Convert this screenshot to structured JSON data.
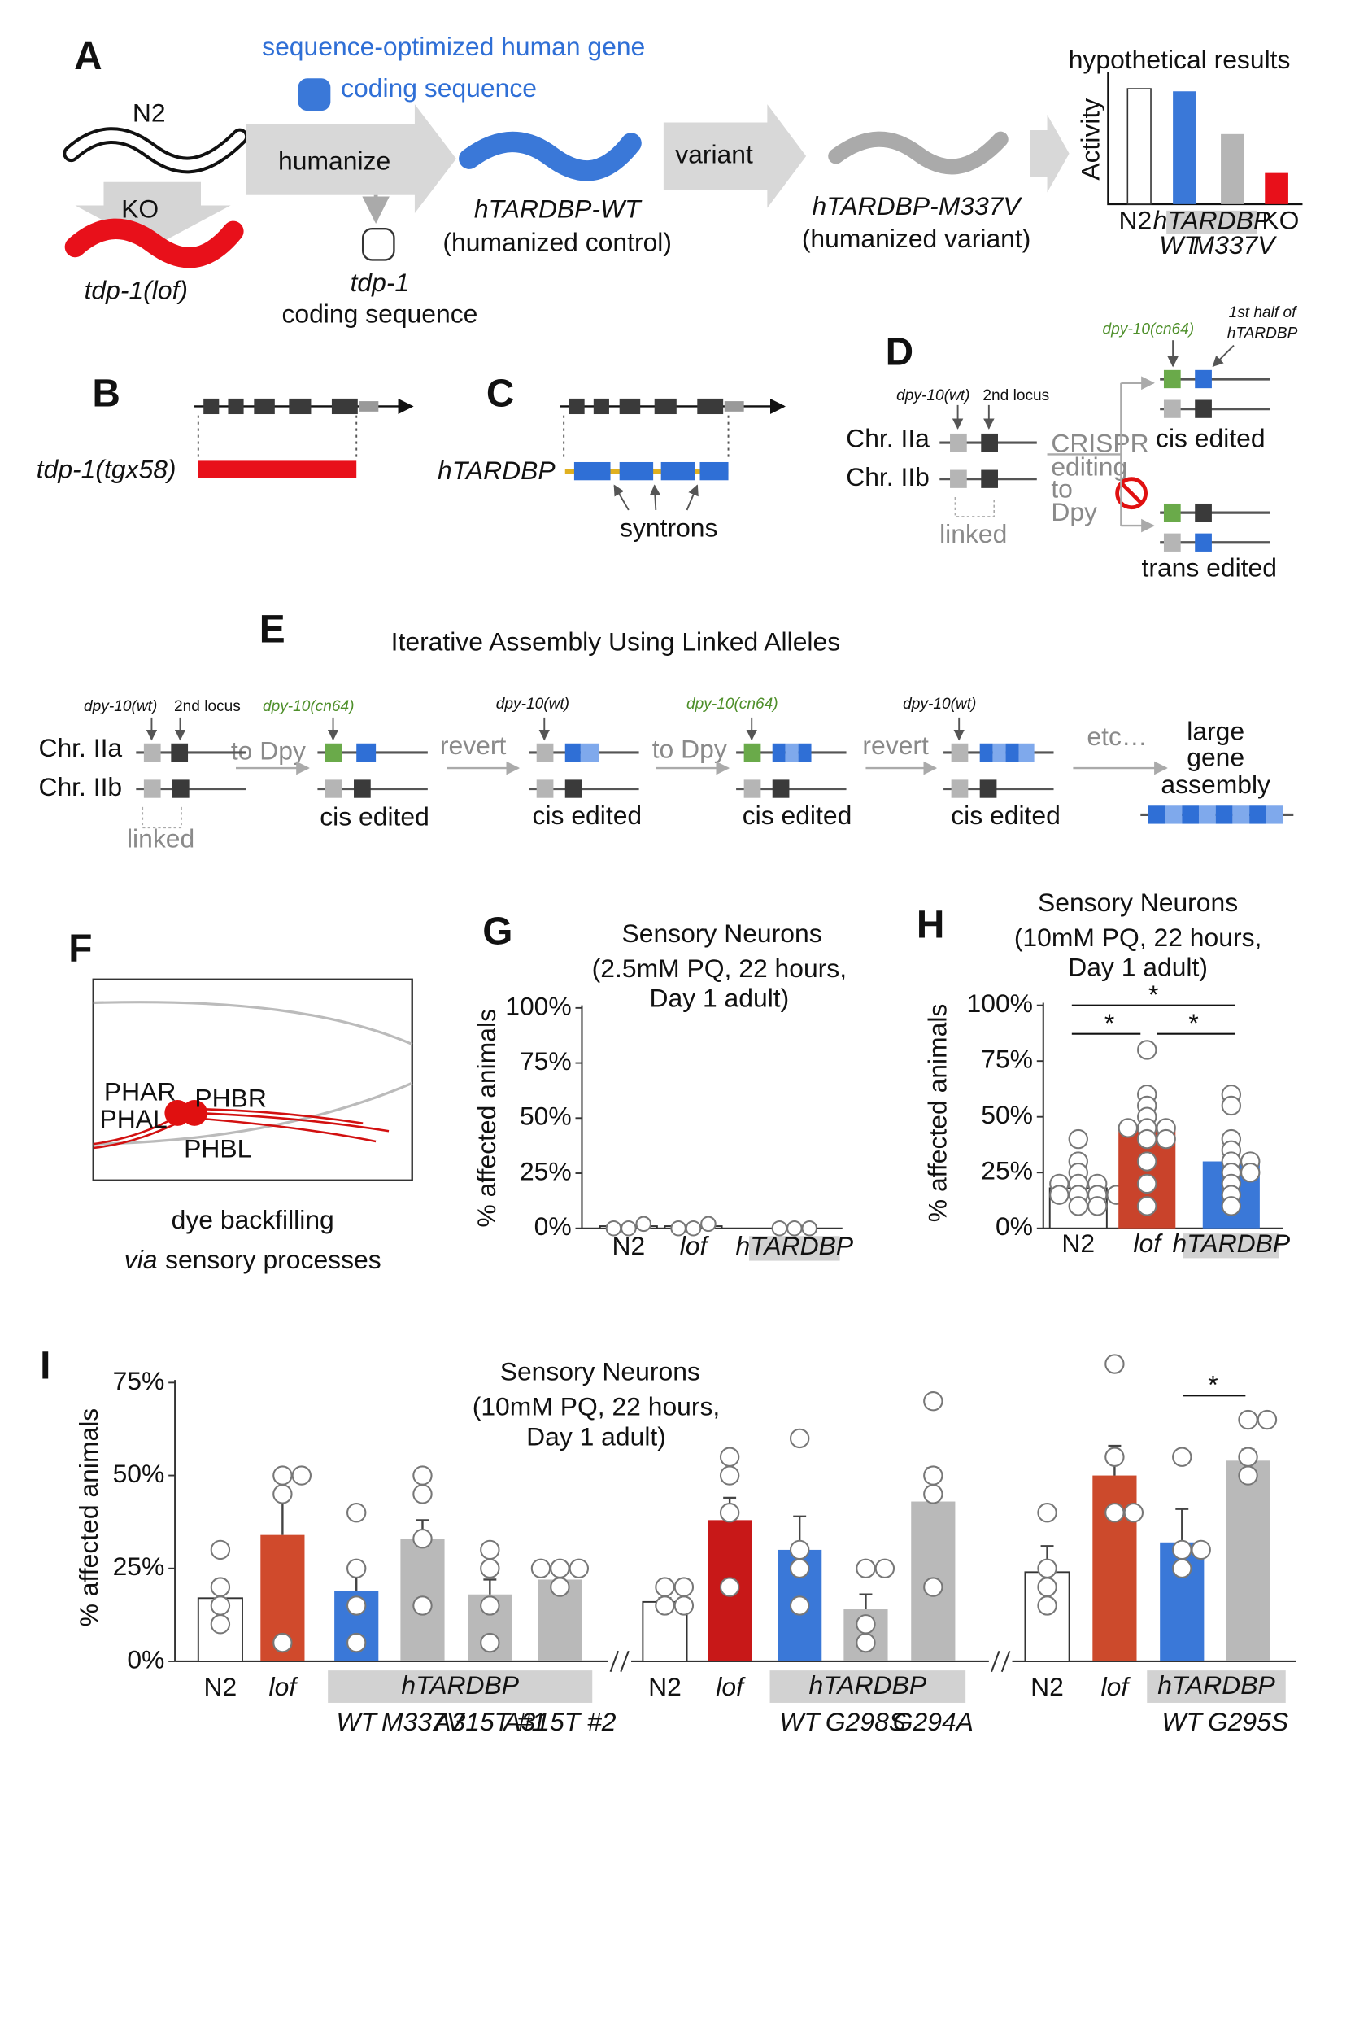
{
  "panel_a": {
    "label": "A",
    "human_gene": "sequence-optimized human gene",
    "coding_sequence_blue": "coding sequence",
    "n2": "N2",
    "ko": "KO",
    "lof": "tdp-1(lof)",
    "humanize": "humanize",
    "wt": "hTARDBP-WT",
    "wt_note": "(humanized control)",
    "tdp1": "tdp-1",
    "tdp1_note": "coding sequence",
    "variant": "variant",
    "m337v": "hTARDBP-M337V",
    "m337v_note": "(humanized variant)",
    "results_title": "hypothetical results",
    "results_axis": "Activity",
    "results_labels": [
      "N2",
      "hTARDBP",
      "KO"
    ],
    "results_sublabels": [
      "WT",
      "M337V"
    ]
  },
  "panel_b": {
    "label": "B",
    "allele": "tdp-1(tgx58)"
  },
  "panel_c": {
    "label": "C",
    "gene": "hTARDBP",
    "syntrons": "syntrons"
  },
  "panel_d": {
    "label": "D",
    "wt_locus": "dpy-10(wt)",
    "second_locus": "2nd locus",
    "chr_a": "Chr. IIa",
    "chr_b": "Chr. IIb",
    "linked": "linked",
    "crispr": [
      "CRISPR",
      "editing",
      "to",
      "Dpy"
    ],
    "cn64": "dpy-10(cn64)",
    "half": [
      "1st half of",
      "hTARDBP"
    ],
    "cis": "cis edited",
    "trans": "trans edited"
  },
  "panel_e": {
    "label": "E",
    "title": "Iterative Assembly Using Linked Alleles",
    "loci": [
      "dpy-10(wt)",
      "dpy-10(cn64)",
      "dpy-10(wt)",
      "dpy-10(cn64)",
      "dpy-10(wt)"
    ],
    "second_locus": "2nd locus",
    "chr_a": "Chr. IIa",
    "chr_b": "Chr. IIb",
    "linked": "linked",
    "steps": [
      "to Dpy",
      "revert",
      "to Dpy",
      "revert",
      "etc…"
    ],
    "results": [
      "cis edited",
      "cis edited",
      "cis edited",
      "cis edited"
    ],
    "final": [
      "large",
      "gene",
      "assembly"
    ]
  },
  "panel_f": {
    "label": "F",
    "neurons": [
      "PHAR",
      "PHAL",
      "PHBR",
      "PHBL"
    ],
    "caption": "dye backfilling",
    "caption_italic": "via",
    "caption_rest": "sensory processes"
  },
  "chart_data": [
    {
      "type": "bar",
      "panel": "G",
      "title": "Sensory Neurons",
      "subtitle": [
        "(2.5mM PQ, 22 hours,",
        "Day 1 adult)"
      ],
      "ylabel": "% affected animals",
      "categories": [
        "N2",
        "lof",
        "hTARDBP"
      ],
      "values": [
        1,
        1,
        0
      ],
      "colors": [
        "#ffffff",
        "#ffffff",
        "#ffffff"
      ],
      "points": [
        [
          0,
          2,
          0
        ],
        [
          0,
          2,
          0
        ],
        [
          0,
          0,
          0
        ]
      ],
      "ylim": [
        0,
        100
      ],
      "yticks": [
        {
          "value": 0,
          "label": "0%"
        },
        {
          "value": 25,
          "label": "25%"
        },
        {
          "value": 50,
          "label": "50%"
        },
        {
          "value": 75,
          "label": "75%"
        },
        {
          "value": 100,
          "label": "100%"
        }
      ]
    },
    {
      "type": "bar",
      "panel": "H",
      "title": "Sensory Neurons",
      "subtitle": [
        "(10mM PQ, 22 hours,",
        "Day 1 adult)"
      ],
      "ylabel": "% affected animals",
      "categories": [
        "N2",
        "lof",
        "hTARDBP"
      ],
      "values": [
        18,
        45,
        30
      ],
      "colors": [
        "#ffffff",
        "#c9432b",
        "#3a78d8"
      ],
      "points": [
        [
          40,
          30,
          25,
          20,
          20,
          20,
          15,
          15,
          15,
          10,
          10,
          15
        ],
        [
          80,
          60,
          55,
          50,
          45,
          45,
          45,
          40,
          40,
          30,
          20,
          10
        ],
        [
          60,
          55,
          40,
          35,
          30,
          30,
          25,
          25,
          20,
          15,
          10
        ]
      ],
      "annotations": [
        "*",
        "*",
        "*"
      ],
      "ylim": [
        0,
        100
      ],
      "yticks": [
        {
          "value": 0,
          "label": "0%"
        },
        {
          "value": 25,
          "label": "25%"
        },
        {
          "value": 50,
          "label": "50%"
        },
        {
          "value": 75,
          "label": "75%"
        },
        {
          "value": 100,
          "label": "100%"
        }
      ]
    },
    {
      "type": "grouped_bar",
      "panel": "I",
      "title": "Sensory Neurons",
      "subtitle": [
        "(10mM PQ, 22 hours,",
        "Day 1 adult)"
      ],
      "ylabel": "% affected animals",
      "groups": [
        {
          "label": "hTARDBP",
          "categories": [
            "N2",
            "lof",
            "WT",
            "M337V",
            "A315T #1",
            "A315T #2"
          ],
          "values": [
            17,
            34,
            19,
            33,
            18,
            22
          ],
          "errors": [
            4,
            12,
            6,
            5,
            4,
            2
          ],
          "colors": [
            "#ffffff",
            "#d04a2c",
            "#3a78d8",
            "#b9b9b9",
            "#b9b9b9",
            "#b9b9b9"
          ],
          "points": [
            [
              30,
              20,
              15,
              10
            ],
            [
              50,
              50,
              45,
              5
            ],
            [
              40,
              25,
              15,
              5
            ],
            [
              50,
              45,
              33,
              15
            ],
            [
              30,
              25,
              15,
              5
            ],
            [
              25,
              25,
              25,
              20
            ]
          ]
        },
        {
          "label": "hTARDBP",
          "categories": [
            "N2",
            "lof",
            "WT",
            "G298S",
            "G294A"
          ],
          "values": [
            16,
            38,
            30,
            14,
            43
          ],
          "errors": [
            1,
            6,
            9,
            4,
            9
          ],
          "colors": [
            "#ffffff",
            "#c81818",
            "#3a78d8",
            "#b9b9b9",
            "#b9b9b9"
          ],
          "points": [
            [
              20,
              20,
              15,
              15
            ],
            [
              55,
              50,
              40,
              20
            ],
            [
              60,
              30,
              25,
              15
            ],
            [
              25,
              25,
              10,
              5
            ],
            [
              70,
              50,
              45,
              20
            ]
          ]
        },
        {
          "label": "hTARDBP",
          "categories": [
            "N2",
            "lof",
            "WT",
            "G295S"
          ],
          "values": [
            24,
            50,
            32,
            54
          ],
          "errors": [
            7,
            8,
            9,
            3
          ],
          "colors": [
            "#ffffff",
            "#cc4a2c",
            "#3a78d8",
            "#b9b9b9"
          ],
          "points": [
            [
              40,
              25,
              20,
              15
            ],
            [
              80,
              55,
              40,
              40
            ],
            [
              55,
              30,
              30,
              25
            ],
            [
              65,
              65,
              55,
              50
            ]
          ]
        }
      ],
      "annotations": [
        "*"
      ],
      "ylim": [
        0,
        75
      ],
      "yticks": [
        {
          "value": 0,
          "label": "0%"
        },
        {
          "value": 25,
          "label": "25%"
        },
        {
          "value": 50,
          "label": "50%"
        },
        {
          "value": 75,
          "label": "75%"
        }
      ]
    }
  ]
}
